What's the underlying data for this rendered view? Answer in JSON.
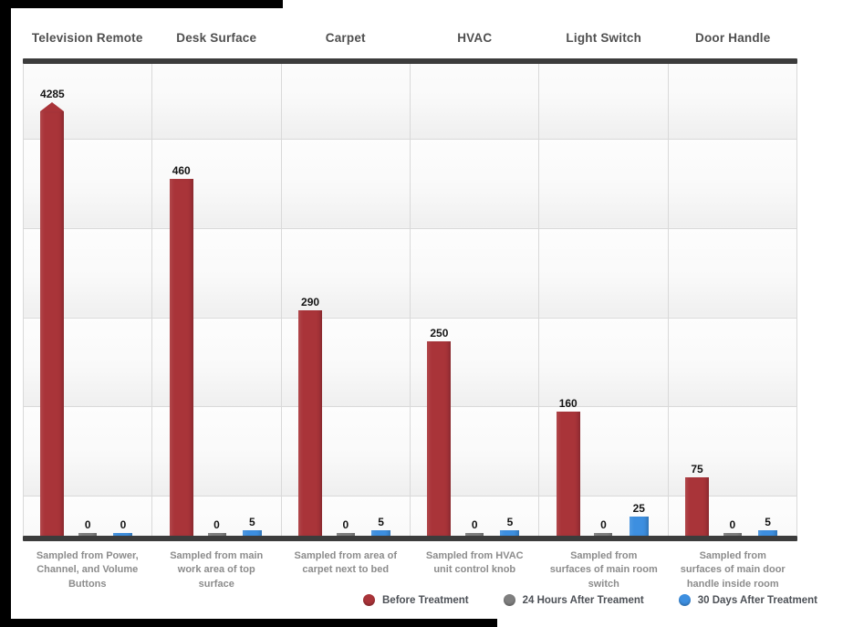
{
  "page": {
    "background": "#000000",
    "sheet_color": "#ffffff"
  },
  "style": {
    "grid_color": "#d9d9d9",
    "axis_color": "#3c3c3c",
    "header_text_color": "#4f4f4f",
    "note_text_color": "#8c8c8c",
    "value_label_color": "#141414"
  },
  "chart_data": {
    "type": "bar",
    "categories": [
      "Television Remote",
      "Desk Surface",
      "Carpet",
      "HVAC",
      "Light Switch",
      "Door Handle"
    ],
    "category_notes": [
      "Sampled from Power, Channel, and Volume Buttons",
      "Sampled from main work area of top surface",
      "Sampled from area of carpet next to bed",
      "Sampled from HVAC unit control knob",
      "Sampled from surfaces of main room switch",
      "Sampled from surfaces of main door handle inside room"
    ],
    "series": [
      {
        "name": "Before Treatment",
        "color": "#a93439",
        "values": [
          4285,
          460,
          290,
          250,
          160,
          75
        ]
      },
      {
        "name": "24 Hours After Treament",
        "color": "#7f7f7f",
        "values": [
          0,
          0,
          0,
          0,
          0,
          0
        ]
      },
      {
        "name": "30 Days After Treatment",
        "color": "#3d8fe0",
        "values": [
          0,
          5,
          5,
          5,
          25,
          5
        ]
      }
    ],
    "value_labels_shown": true,
    "grid": true,
    "gridline_count": 5,
    "legend_position": "bottom-right",
    "ylim": [
      0,
      550
    ],
    "overflow_indicator": "bar for value 4285 exceeds plotted range and is drawn clamped with a pointed cap"
  }
}
